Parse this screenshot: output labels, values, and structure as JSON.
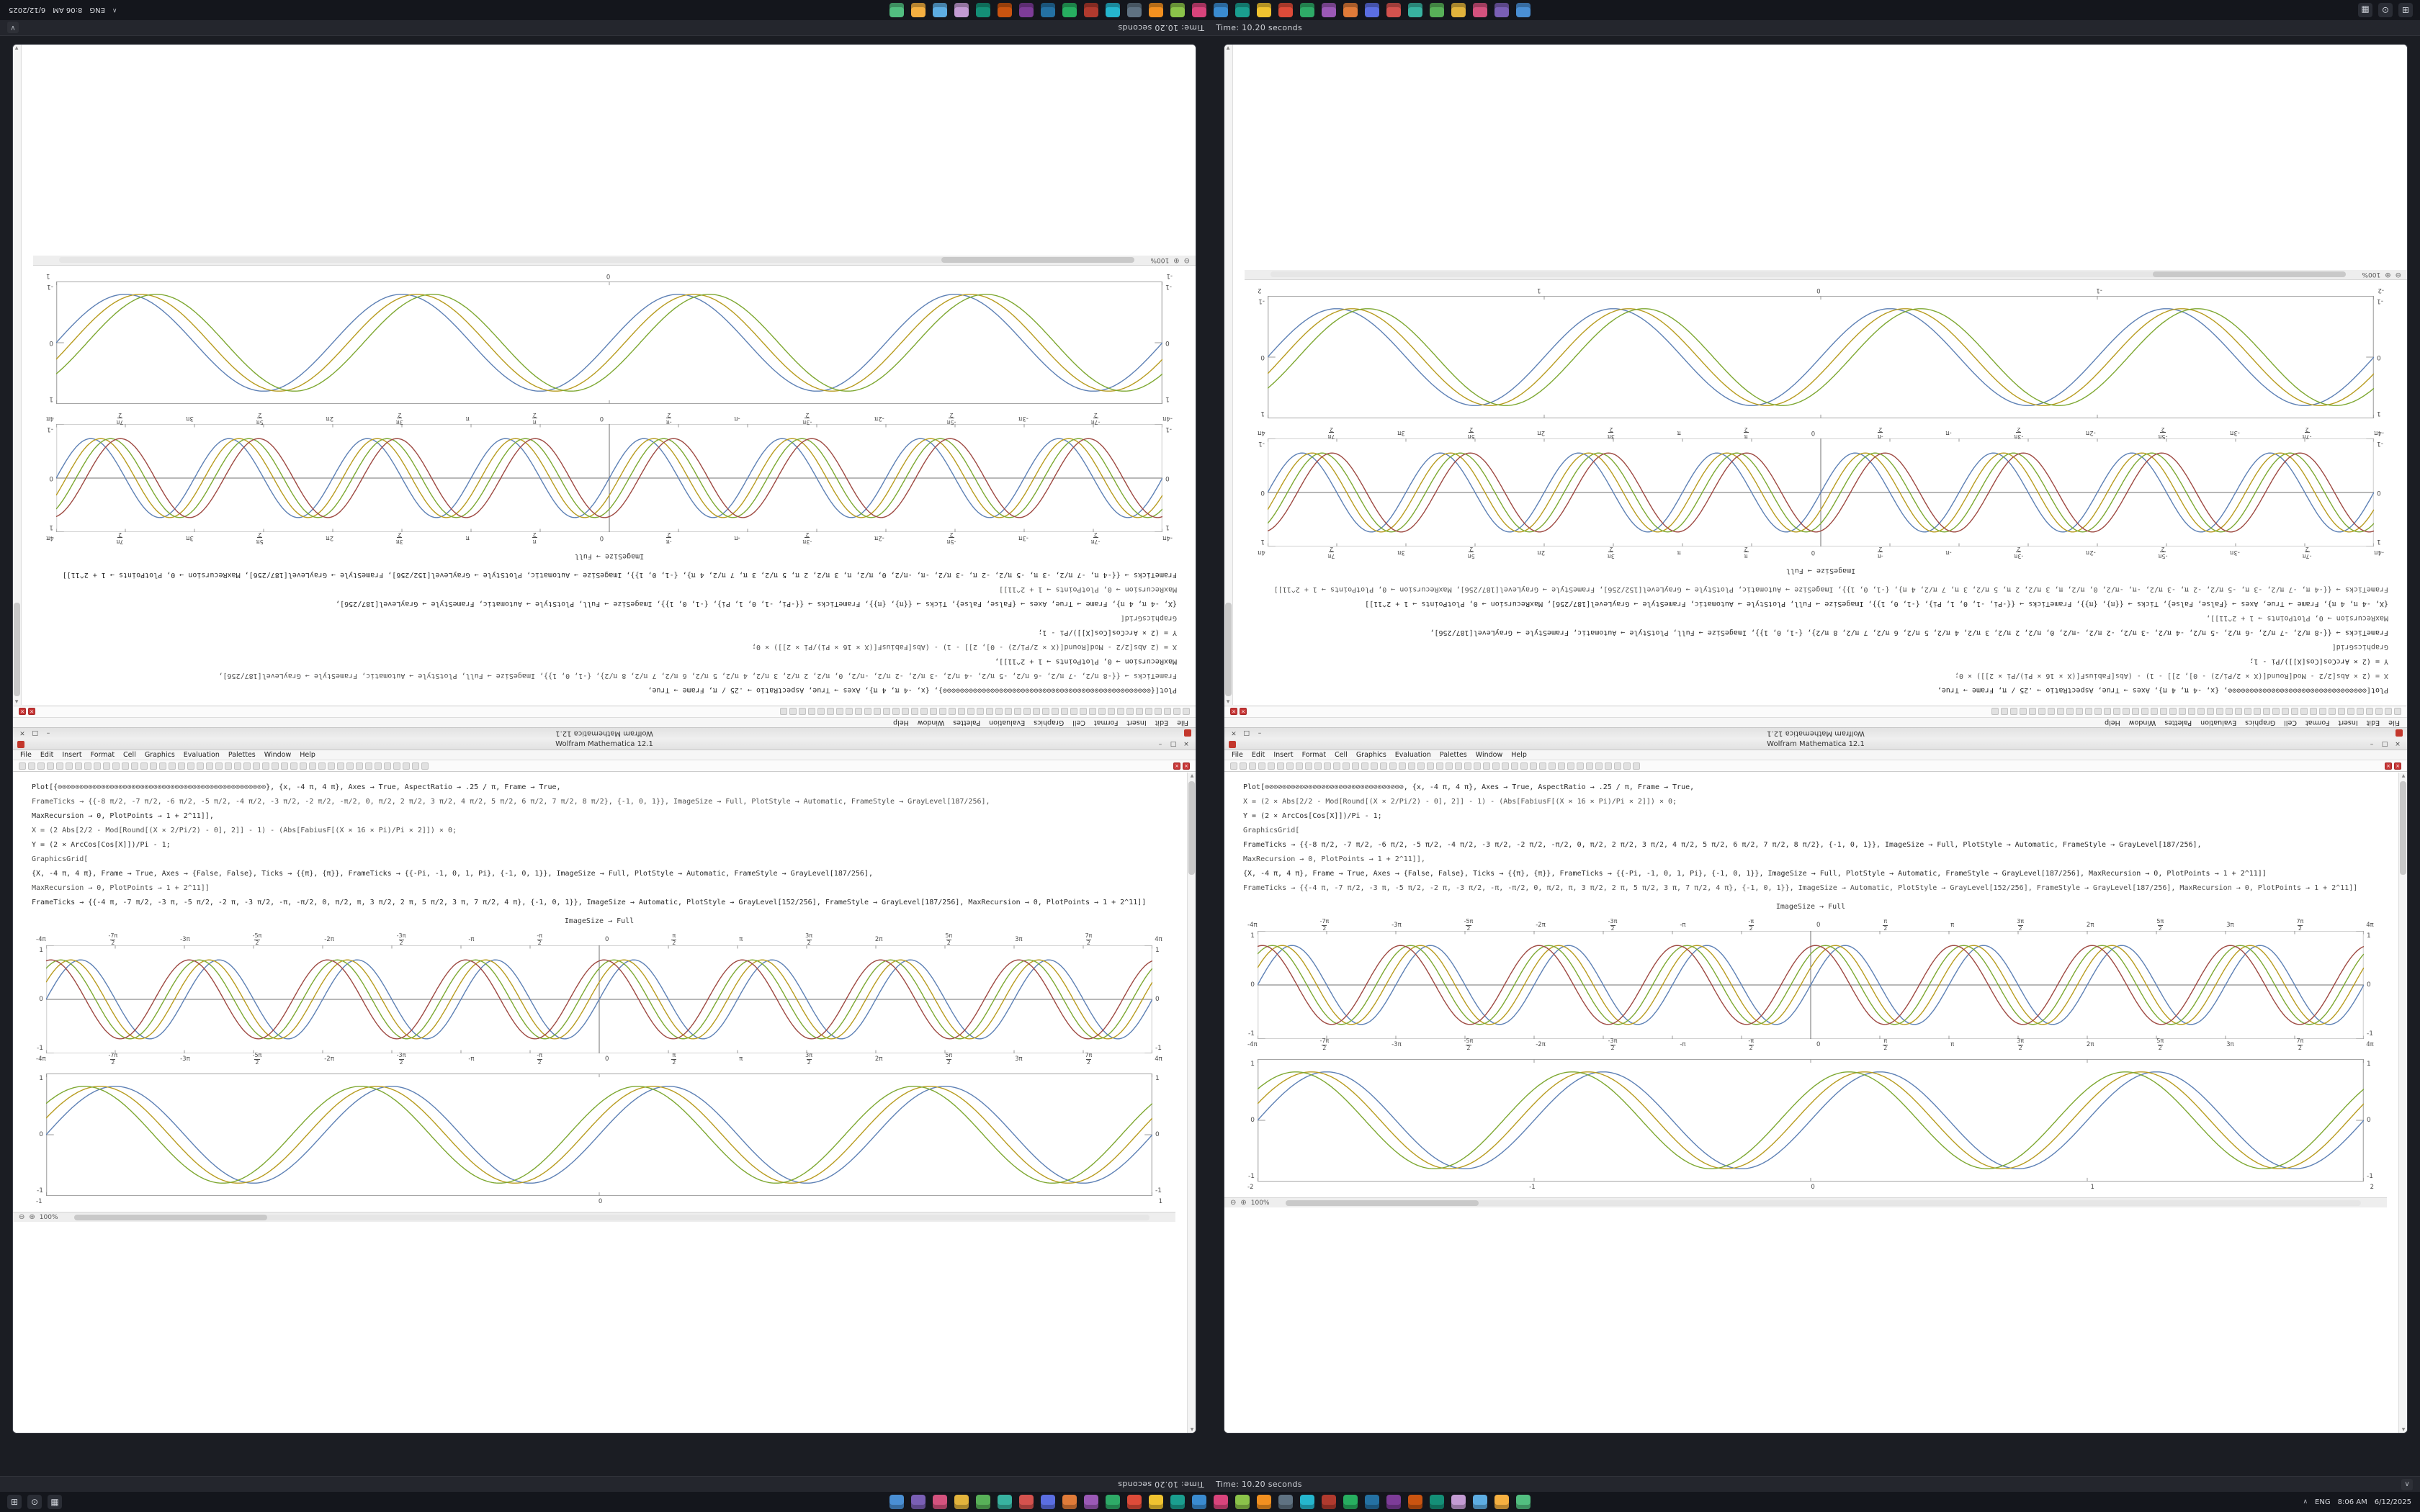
{
  "colors": {
    "desktop_bg": "#1b1d23",
    "window_bg": "#ffffff",
    "stop_red": "#c83737",
    "series": [
      "#5e81b5",
      "#b89c20",
      "#7ea832",
      "#9e4a42"
    ]
  },
  "taskbar": {
    "system_icons": [
      {
        "name": "start",
        "glyph": "⊞"
      },
      {
        "name": "search",
        "glyph": "⊙"
      },
      {
        "name": "task-view",
        "glyph": "▦"
      }
    ],
    "app_icons": [
      {
        "color": "#4a8fd4"
      },
      {
        "color": "#7a5fb5"
      },
      {
        "color": "#d4527e"
      },
      {
        "color": "#e2b33c"
      },
      {
        "color": "#58b058"
      },
      {
        "color": "#38b2a0"
      },
      {
        "color": "#d4524e"
      },
      {
        "color": "#5b6ee1"
      },
      {
        "color": "#e07b39"
      },
      {
        "color": "#9b59b6"
      },
      {
        "color": "#2eaa67"
      },
      {
        "color": "#dd4b39"
      },
      {
        "color": "#f0c330"
      },
      {
        "color": "#1a9e8f"
      },
      {
        "color": "#3a8bd0"
      },
      {
        "color": "#d8447c"
      },
      {
        "color": "#8bc34a"
      },
      {
        "color": "#f29020"
      },
      {
        "color": "#5f7282"
      },
      {
        "color": "#25b6ce"
      },
      {
        "color": "#b03a2e"
      },
      {
        "color": "#27ae60"
      },
      {
        "color": "#2471a3"
      },
      {
        "color": "#7d3c98"
      },
      {
        "color": "#ca5410"
      },
      {
        "color": "#148f77"
      },
      {
        "color": "#c39bd3"
      },
      {
        "color": "#5dade2"
      },
      {
        "color": "#f5b041"
      },
      {
        "color": "#52be80"
      }
    ],
    "tray": {
      "chevron": "∧",
      "lang": "ENG",
      "time": "8:06 AM",
      "date": "6/12/2025"
    }
  },
  "title_strip": {
    "title": "Time: 10.20 seconds",
    "button": "∨"
  },
  "notebook": {
    "window_title": "Wolfram Mathematica 12.1",
    "menus": [
      "File",
      "Edit",
      "Insert",
      "Format",
      "Cell",
      "Graphics",
      "Evaluation",
      "Palettes",
      "Window",
      "Help"
    ],
    "controls": {
      "minimize": "–",
      "maximize": "□",
      "close": "×"
    },
    "toolbar_buttons": 44,
    "stop_glyph": "×",
    "status": {
      "zoom_out": "⊖",
      "zoom_in": "⊕",
      "zoom": "100%"
    },
    "left": {
      "label": "ImageSize → Full",
      "code": [
        "Plot[{⊙⊙⊙⊙⊙⊙⊙⊙⊙⊙⊙⊙⊙⊙⊙⊙⊙⊙⊙⊙⊙⊙⊙⊙⊙⊙⊙⊙⊙⊙⊙⊙⊙⊙⊙⊙⊙⊙⊙⊙⊙⊙⊙⊙⊙⊙⊙⊙}, {x, -4 π, 4 π}, Axes → True, AspectRatio → .25 / π, Frame → True,",
        "FrameTicks → {{-8 π/2, -7 π/2, -6 π/2, -5 π/2, -4 π/2, -3 π/2, -2 π/2, -π/2, 0, π/2, 2 π/2, 3 π/2, 4 π/2, 5 π/2, 6 π/2, 7 π/2, 8 π/2}, {-1, 0, 1}}, ImageSize → Full, PlotStyle → Automatic, FrameStyle → GrayLevel[187/256],",
        "MaxRecursion → 0, PlotPoints → 1 + 2^11]],",
        "X = (2 Abs[2/2 - Mod[Round[(X × 2/Pi/2) - 0], 2]] - 1) - (Abs[FabiusF[(X × 16 × Pi)/Pi × 2]]) × 0;",
        "Y = (2 × ArcCos[Cos[X]])/Pi - 1;",
        "GraphicsGrid[",
        "{X, -4 π, 4 π}, Frame → True, Axes → {False, False}, Ticks → {{π}, {π}}, FrameTicks → {{-Pi, -1, 0, 1, Pi}, {-1, 0, 1}}, ImageSize → Full, PlotStyle → Automatic, FrameStyle → GrayLevel[187/256],",
        "MaxRecursion → 0, PlotPoints → 1 + 2^11]]",
        "FrameTicks → {{-4 π, -7 π/2, -3 π, -5 π/2, -2 π, -3 π/2, -π, -π/2, 0, π/2, π, 3 π/2, 2 π, 5 π/2, 3 π, 7 π/2, 4 π}, {-1, 0, 1}}, ImageSize → Automatic, PlotStyle → GrayLevel[152/256], FrameStyle → GrayLevel[187/256], MaxRecursion → 0, PlotPoints → 1 + 2^11]]"
      ],
      "plot_axes": {
        "type": "line",
        "kind": "axes",
        "x_range_pi": [
          -4,
          4
        ],
        "freq": 2,
        "amp": 0.85,
        "series": [
          {
            "name": "curve-1",
            "phase": 0,
            "color": "#5e81b5"
          },
          {
            "name": "curve-2",
            "phase": 0.45,
            "color": "#b89c20"
          },
          {
            "name": "curve-3",
            "phase": 0.9,
            "color": "#7ea832"
          },
          {
            "name": "curve-4",
            "phase": 1.35,
            "color": "#9e4a42"
          }
        ],
        "xticks": [
          "-4π",
          "-7π/2",
          "-3π",
          "-5π/2",
          "-2π",
          "-3π/2",
          "-π",
          "-π/2",
          "0",
          "π/2",
          "π",
          "3π/2",
          "2π",
          "5π/2",
          "3π",
          "7π/2",
          "4π"
        ],
        "yticks": [
          "1",
          "0",
          "-1"
        ]
      },
      "plot_framed": {
        "type": "line",
        "kind": "framed",
        "x_range_pi": [
          -4,
          4
        ],
        "freq": 1,
        "amp": 0.92,
        "series": [
          {
            "name": "curve-1",
            "phase": 0,
            "color": "#5e81b5"
          },
          {
            "name": "curve-2",
            "phase": 0.35,
            "color": "#b89c20"
          },
          {
            "name": "curve-3",
            "phase": 0.7,
            "color": "#7ea832"
          }
        ],
        "xticks": [
          "-1",
          "0",
          "1"
        ],
        "yticks": [
          "1",
          "0",
          "-1"
        ]
      }
    },
    "right": {
      "label": "ImageSize → Full",
      "code": [
        "Plot[⊙⊘⊙⊘⊙⊘⊙⊘⊙⊘⊙⊘⊙⊘⊙⊘⊙⊘⊙⊘⊙⊘⊙⊘⊙⊘⊙⊘⊙⊘⊙⊘, {x, -4 π, 4 π}, Axes → True, AspectRatio → .25 / π, Frame → True,",
        "X = (2 × Abs[2/2 - Mod[Round[(X × 2/Pi/2) - 0], 2]] - 1) - (Abs[FabiusF[(X × 16 × Pi)/Pi × 2]]) × 0;",
        "Y = (2 × ArcCos[Cos[X]])/Pi - 1;",
        "GraphicsGrid[",
        "FrameTicks → {{-8 π/2, -7 π/2, -6 π/2, -5 π/2, -4 π/2, -3 π/2, -2 π/2, -π/2, 0, π/2, 2 π/2, 3 π/2, 4 π/2, 5 π/2, 6 π/2, 7 π/2, 8 π/2}, {-1, 0, 1}}, ImageSize → Full, PlotStyle → Automatic, FrameStyle → GrayLevel[187/256],",
        "MaxRecursion → 0, PlotPoints → 1 + 2^11]],",
        "{X, -4 π, 4 π}, Frame → True, Axes → {False, False}, Ticks → {{π}, {π}}, FrameTicks → {{-Pi, -1, 0, 1, Pi}, {-1, 0, 1}}, ImageSize → Full, PlotStyle → Automatic, FrameStyle → GrayLevel[187/256], MaxRecursion → 0, PlotPoints → 1 + 2^11]]",
        "FrameTicks → {{-4 π, -7 π/2, -3 π, -5 π/2, -2 π, -3 π/2, -π, -π/2, 0, π/2, π, 3 π/2, 2 π, 5 π/2, 3 π, 7 π/2, 4 π}, {-1, 0, 1}}, ImageSize → Automatic, PlotStyle → GrayLevel[152/256], FrameStyle → GrayLevel[187/256], MaxRecursion → 0, PlotPoints → 1 + 2^11]]"
      ],
      "plot_axes": {
        "type": "line",
        "kind": "axes",
        "x_range_pi": [
          -4,
          4
        ],
        "freq": 2,
        "amp": 0.85,
        "series": [
          {
            "name": "curve-1",
            "phase": 0,
            "color": "#5e81b5"
          },
          {
            "name": "curve-2",
            "phase": 0.45,
            "color": "#b89c20"
          },
          {
            "name": "curve-3",
            "phase": 0.9,
            "color": "#7ea832"
          },
          {
            "name": "curve-4",
            "phase": 1.35,
            "color": "#9e4a42"
          }
        ],
        "xticks": [
          "-4π",
          "-7π/2",
          "-3π",
          "-5π/2",
          "-2π",
          "-3π/2",
          "-π",
          "-π/2",
          "0",
          "π/2",
          "π",
          "3π/2",
          "2π",
          "5π/2",
          "3π",
          "7π/2",
          "4π"
        ],
        "yticks": [
          "1",
          "0",
          "-1"
        ]
      },
      "plot_framed": {
        "type": "line",
        "kind": "framed",
        "x_range_pi": [
          -4,
          4
        ],
        "freq": 1,
        "amp": 0.92,
        "series": [
          {
            "name": "curve-1",
            "phase": 0,
            "color": "#5e81b5"
          },
          {
            "name": "curve-2",
            "phase": 0.35,
            "color": "#b89c20"
          },
          {
            "name": "curve-3",
            "phase": 0.7,
            "color": "#7ea832"
          }
        ],
        "xticks": [
          "-2",
          "-1",
          "0",
          "1",
          "2"
        ],
        "yticks": [
          "1",
          "0",
          "-1"
        ]
      }
    }
  }
}
